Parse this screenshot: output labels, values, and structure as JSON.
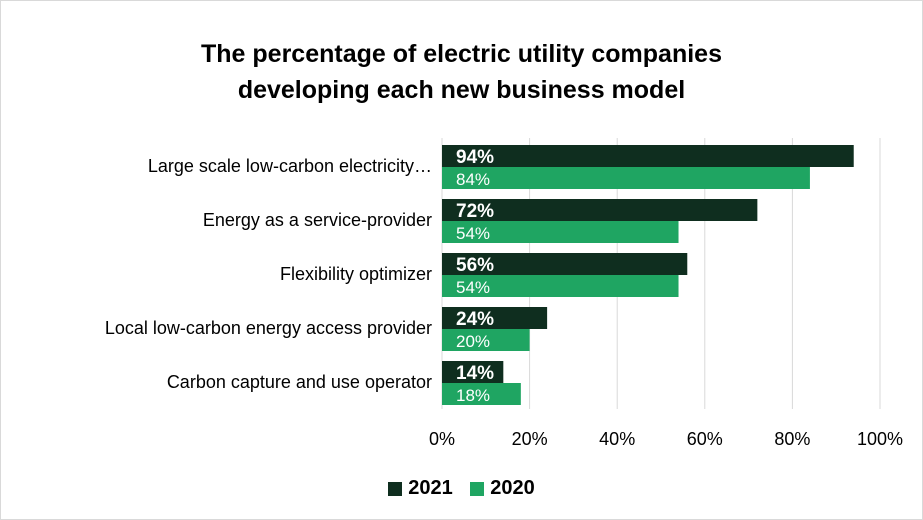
{
  "chart_data": {
    "type": "bar",
    "orientation": "horizontal",
    "title_lines": [
      "The percentage of electric utility companies",
      "developing each new business model"
    ],
    "categories": [
      "Large scale low-carbon electricity…",
      "Energy as a service-provider",
      "Flexibility optimizer",
      "Local low-carbon energy access provider",
      "Carbon capture and use operator"
    ],
    "series": [
      {
        "name": "2021",
        "color": "#0f2e1f",
        "values": [
          94,
          72,
          56,
          24,
          14
        ],
        "labels": [
          "94%",
          "72%",
          "56%",
          "24%",
          "14%"
        ]
      },
      {
        "name": "2020",
        "color": "#1fa562",
        "values": [
          84,
          54,
          54,
          20,
          18
        ],
        "labels": [
          "84%",
          "54%",
          "54%",
          "20%",
          "18%"
        ]
      }
    ],
    "xlim": [
      0,
      100
    ],
    "xticks": [
      0,
      20,
      40,
      60,
      80,
      100
    ],
    "xtick_labels": [
      "0%",
      "20%",
      "40%",
      "60%",
      "80%",
      "100%"
    ],
    "grid": "vertical",
    "gridline_color": "#d9d9d9",
    "legend_position": "bottom"
  }
}
